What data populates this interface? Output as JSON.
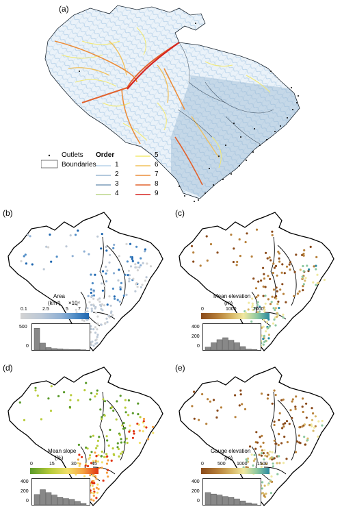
{
  "panels": {
    "a": {
      "label": "(a)"
    },
    "b": {
      "label": "(b)"
    },
    "c": {
      "label": "(c)"
    },
    "d": {
      "label": "(d)"
    },
    "e": {
      "label": "(e)"
    }
  },
  "legend_a": {
    "outlets": "Outlets",
    "boundaries": "Boundaries",
    "order_title": "Order",
    "orders": [
      {
        "label": "1",
        "color": "#b9d3ea"
      },
      {
        "label": "2",
        "color": "#9ab7d2"
      },
      {
        "label": "3",
        "color": "#7a9cb8"
      },
      {
        "label": "4",
        "color": "#bcd58a"
      },
      {
        "label": "5",
        "color": "#f4ea70"
      },
      {
        "label": "6",
        "color": "#f2c05a"
      },
      {
        "label": "7",
        "color": "#ec8d3a"
      },
      {
        "label": "8",
        "color": "#e2622d"
      },
      {
        "label": "9",
        "color": "#d62420"
      }
    ]
  },
  "colorbars": {
    "b": {
      "title": "Area",
      "unit": "(km²)",
      "multiplier": "×10⁴",
      "ticks": [
        "0.1",
        "2.5",
        "5",
        "7"
      ],
      "colors": [
        "#d3d3d3",
        "#bcc8d6",
        "#8fb0d4",
        "#4f8cc6",
        "#1f67b0"
      ],
      "hist_yticks": [
        "500",
        "0"
      ],
      "hist": [
        0.88,
        0.28,
        0.1,
        0.06,
        0.05,
        0.03,
        0.02,
        0.02,
        0.01
      ]
    },
    "c": {
      "title": "Mean elevation",
      "unit": "(m)",
      "ticks": [
        "0",
        "1000",
        "2000"
      ],
      "colors": [
        "#8a4a1a",
        "#b7803a",
        "#d8b868",
        "#f0e8a0",
        "#8cc8a0",
        "#2a8aa0"
      ],
      "hist_yticks": [
        "400",
        "200",
        "0"
      ],
      "hist": [
        0.12,
        0.3,
        0.42,
        0.5,
        0.4,
        0.3,
        0.14,
        0.04,
        0.02
      ]
    },
    "d": {
      "title": "Mean slope",
      "unit": "(%)",
      "ticks": [
        "0",
        "15",
        "30",
        "45"
      ],
      "colors": [
        "#5a9a2a",
        "#b8cc3a",
        "#f2e06a",
        "#f5a040",
        "#e03010"
      ],
      "hist_yticks": [
        "400",
        "200",
        "0"
      ],
      "hist": [
        0.42,
        0.62,
        0.5,
        0.4,
        0.3,
        0.26,
        0.22,
        0.14,
        0.06
      ]
    },
    "e": {
      "title": "Gauge elevation",
      "unit": "(m)",
      "ticks": [
        "0",
        "500",
        "1000",
        "1500"
      ],
      "colors": [
        "#8a4a1a",
        "#b7803a",
        "#d8b868",
        "#f0e8a0",
        "#8cc8a0",
        "#2a8aa0"
      ],
      "hist_yticks": [
        "400",
        "200",
        "0"
      ],
      "hist": [
        0.5,
        0.44,
        0.4,
        0.34,
        0.3,
        0.24,
        0.16,
        0.08,
        0.04
      ]
    }
  }
}
